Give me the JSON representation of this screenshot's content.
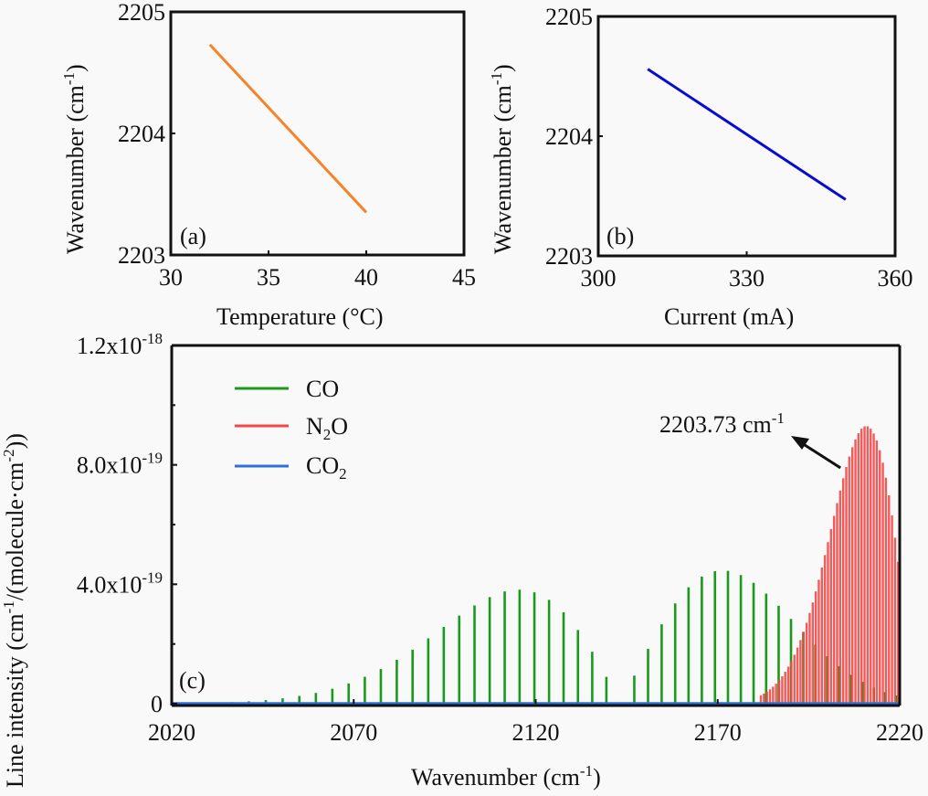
{
  "chart_data": [
    {
      "type": "line",
      "panel_label": "(a)",
      "xlabel": "Temperature (°C)",
      "ylabel": {
        "text": "Wavenumber (cm",
        "sup": "-1",
        "close": ")"
      },
      "xlim": [
        30,
        45
      ],
      "ylim": [
        2203,
        2205
      ],
      "xticks": [
        "30",
        "35",
        "40",
        "45"
      ],
      "yticks": [
        "2203",
        "2204",
        "2205"
      ],
      "color": "#f5832a",
      "x": [
        32,
        40
      ],
      "y": [
        2204.73,
        2203.35
      ]
    },
    {
      "type": "line",
      "panel_label": "(b)",
      "xlabel": "Current (mA)",
      "ylabel": {
        "text": "Wavenumber (cm",
        "sup": "-1",
        "close": ")"
      },
      "xlim": [
        300,
        360
      ],
      "ylim": [
        2203,
        2205
      ],
      "xticks": [
        "300",
        "330",
        "360"
      ],
      "yticks": [
        "2203",
        "2204",
        "2205"
      ],
      "color": "#0a0ad0",
      "x": [
        310,
        350
      ],
      "y": [
        2204.56,
        2203.47
      ]
    },
    {
      "type": "bar",
      "panel_label": "(c)",
      "xlabel": {
        "text": "Wavenumber (cm",
        "sup": "-1",
        "close": ")"
      },
      "ylabel": {
        "a": "Line intensity (cm",
        "sup1": "-1",
        "b": "/(molecule·cm",
        "sup2": "-2",
        "c": "))"
      },
      "xlim": [
        2020,
        2220
      ],
      "ylim": [
        0,
        1.2e-18
      ],
      "xticks": [
        "2020",
        "2070",
        "2120",
        "2170",
        "2220"
      ],
      "yticks": [
        {
          "value": 0,
          "base": "0",
          "exp": ""
        },
        {
          "value": 4e-19,
          "base": "4.0x10",
          "exp": "-19"
        },
        {
          "value": 8e-19,
          "base": "8.0x10",
          "exp": "-19"
        },
        {
          "value": 1.2e-18,
          "base": "1.2x10",
          "exp": "-18"
        }
      ],
      "legend": {
        "position": "top-left",
        "entries": [
          {
            "name": "CO",
            "sub": "",
            "color": "#1a9a1a"
          },
          {
            "name": "N",
            "sub": "2",
            "after": "O",
            "color": "#f24848"
          },
          {
            "name": "CO",
            "sub": "2",
            "color": "#2f6fd8"
          }
        ]
      },
      "annotation": {
        "text": "2203.73 cm",
        "sup": "-1",
        "points_to": [
          2203.73,
          7.9e-19
        ]
      },
      "series": [
        {
          "name": "CO",
          "wavenumbers": [
            2027.03,
            2031.79,
            2036.51,
            2041.2,
            2045.86,
            2050.48,
            2055.06,
            2059.61,
            2064.13,
            2068.61,
            2073.05,
            2077.46,
            2081.84,
            2086.17,
            2090.48,
            2094.75,
            2098.99,
            2103.19,
            2107.36,
            2111.48,
            2115.58,
            2119.64,
            2123.67,
            2127.66,
            2131.61,
            2135.53,
            2139.42,
            2147.09,
            2150.87,
            2154.61,
            2158.32,
            2161.99,
            2165.64,
            2169.25,
            2172.82,
            2176.36,
            2179.86,
            2183.32,
            2186.75,
            2190.14,
            2193.5,
            2196.82,
            2200.11,
            2203.36,
            2206.58,
            2209.76,
            2212.9,
            2216.01,
            2219.08
          ],
          "intensities": [
            2e-21,
            3e-21,
            5e-21,
            8e-21,
            1.2e-20,
            1.8e-20,
            2.6e-20,
            3.6e-20,
            5e-20,
            6.8e-20,
            9e-20,
            1.16e-19,
            1.47e-19,
            1.81e-19,
            2.19e-19,
            2.57e-19,
            2.95e-19,
            3.29e-19,
            3.57e-19,
            3.76e-19,
            3.82e-19,
            3.73e-19,
            3.48e-19,
            3.06e-19,
            2.47e-19,
            1.74e-19,
            9e-20,
            9.4e-20,
            1.84e-19,
            2.66e-19,
            3.36e-19,
            3.9e-19,
            4.26e-19,
            4.44e-19,
            4.45e-19,
            4.31e-19,
            4.05e-19,
            3.69e-19,
            3.28e-19,
            2.84e-19,
            2.4e-19,
            1.98e-19,
            1.59e-19,
            1.26e-19,
            9.7e-20,
            7.3e-20,
            5.4e-20,
            3.9e-20,
            2.8e-20
          ]
        },
        {
          "name": "N2O",
          "wavenumbers": [
            2219.57,
            2218.73,
            2217.89,
            2217.06,
            2216.22,
            2215.38,
            2214.54,
            2213.7,
            2212.87,
            2212.03,
            2211.19,
            2210.35,
            2209.51,
            2208.68,
            2207.84,
            2207.0,
            2206.16,
            2205.32,
            2204.49,
            2203.65,
            2202.81,
            2201.97,
            2201.13,
            2200.3,
            2199.46,
            2198.62,
            2197.78,
            2196.94,
            2196.11,
            2195.27,
            2194.43,
            2193.59,
            2192.75,
            2191.92,
            2191.08,
            2190.24,
            2189.4,
            2188.56,
            2187.73,
            2186.89,
            2186.05,
            2185.21,
            2184.37,
            2183.54,
            2182.7,
            2181.86
          ],
          "intensities": [
            4.75e-19,
            5.56e-19,
            6.31e-19,
            6.98e-19,
            7.57e-19,
            8.07e-19,
            8.49e-19,
            8.82e-19,
            9.05e-19,
            9.21e-19,
            9.29e-19,
            9.29e-19,
            9.21e-19,
            9.06e-19,
            8.85e-19,
            8.59e-19,
            8.28e-19,
            7.93e-19,
            7.55e-19,
            7.14e-19,
            6.72e-19,
            6.29e-19,
            5.85e-19,
            5.41e-19,
            4.98e-19,
            4.56e-19,
            4.15e-19,
            3.76e-19,
            3.39e-19,
            3.04e-19,
            2.71e-19,
            2.41e-19,
            2.13e-19,
            1.88e-19,
            1.64e-19,
            1.43e-19,
            1.24e-19,
            1.07e-19,
            9.2e-20,
            7.9e-20,
            6.7e-20,
            5.7e-20,
            4.8e-20,
            4e-20,
            3.4e-20,
            2.8e-20
          ]
        },
        {
          "name": "CO2",
          "wavenumbers": [
            2020,
            2220
          ],
          "intensities": [
            0,
            0
          ]
        }
      ]
    }
  ]
}
